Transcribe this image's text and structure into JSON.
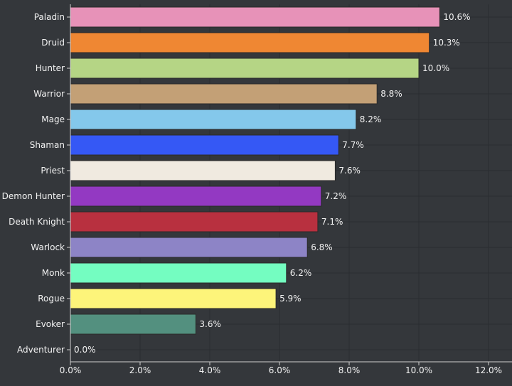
{
  "chart_data": {
    "type": "bar",
    "orientation": "horizontal",
    "categories": [
      "Paladin",
      "Druid",
      "Hunter",
      "Warrior",
      "Mage",
      "Shaman",
      "Priest",
      "Demon Hunter",
      "Death Knight",
      "Warlock",
      "Monk",
      "Rogue",
      "Evoker",
      "Adventurer"
    ],
    "values": [
      10.6,
      10.3,
      10.0,
      8.8,
      8.2,
      7.7,
      7.6,
      7.2,
      7.1,
      6.8,
      6.2,
      5.9,
      3.6,
      0.0
    ],
    "data_labels": [
      "10.6%",
      "10.3%",
      "10.0%",
      "8.8%",
      "8.2%",
      "7.7%",
      "7.6%",
      "7.2%",
      "7.1%",
      "6.8%",
      "6.2%",
      "5.9%",
      "3.6%",
      "0.0%"
    ],
    "colors": [
      "#e792b8",
      "#ef8733",
      "#b5d585",
      "#c3a076",
      "#84c8eb",
      "#3558f5",
      "#f0eae0",
      "#9339c2",
      "#b8303f",
      "#8d84c6",
      "#74fdc1",
      "#fdf47a",
      "#53907f",
      "#888888"
    ],
    "xlim": [
      0,
      12
    ],
    "xticks": [
      "0.0%",
      "2.0%",
      "4.0%",
      "6.0%",
      "8.0%",
      "10.0%",
      "12.0%"
    ],
    "xtick_values": [
      0,
      2,
      4,
      6,
      8,
      10,
      12
    ],
    "grid": true,
    "background": "#34373b",
    "title": "",
    "xlabel": "",
    "ylabel": ""
  }
}
